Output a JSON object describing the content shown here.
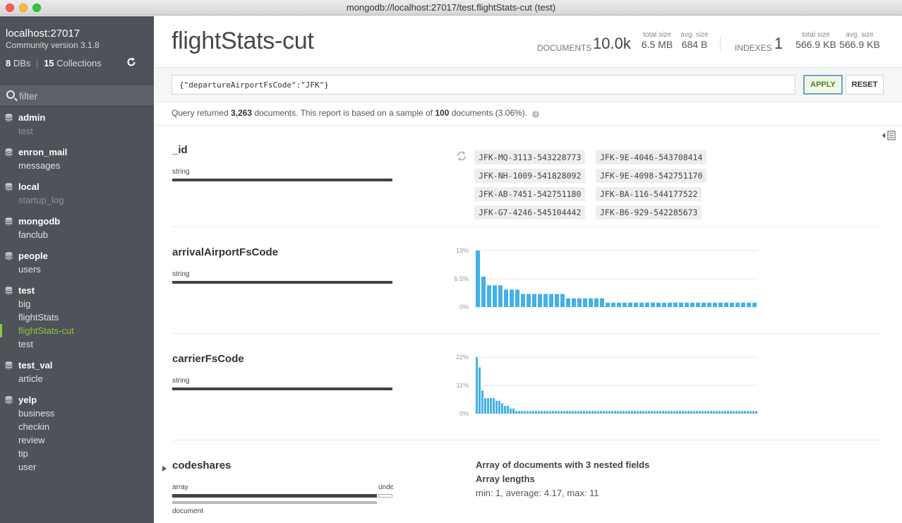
{
  "window": {
    "title": "mongodb://localhost:27017/test.flightStats-cut (test)"
  },
  "sidebar": {
    "host": "localhost:27017",
    "version": "Community version 3.1.8",
    "db_count": "8",
    "db_label": "DBs",
    "coll_count": "15",
    "coll_label": "Collections",
    "filter_placeholder": "filter",
    "databases": [
      {
        "name": "admin",
        "collections": [
          {
            "name": "test",
            "dim": true
          }
        ]
      },
      {
        "name": "enron_mail",
        "collections": [
          {
            "name": "messages"
          }
        ]
      },
      {
        "name": "local",
        "collections": [
          {
            "name": "startup_log",
            "dim": true
          }
        ]
      },
      {
        "name": "mongodb",
        "collections": [
          {
            "name": "fanclub"
          }
        ]
      },
      {
        "name": "people",
        "collections": [
          {
            "name": "users"
          }
        ]
      },
      {
        "name": "test",
        "collections": [
          {
            "name": "big"
          },
          {
            "name": "flightStats"
          },
          {
            "name": "flightStats-cut",
            "active": true
          },
          {
            "name": "test"
          }
        ]
      },
      {
        "name": "test_val",
        "collections": [
          {
            "name": "article"
          }
        ]
      },
      {
        "name": "yelp",
        "collections": [
          {
            "name": "business"
          },
          {
            "name": "checkin"
          },
          {
            "name": "review"
          },
          {
            "name": "tip"
          },
          {
            "name": "user"
          }
        ]
      }
    ]
  },
  "header": {
    "collection": "flightStats-cut",
    "documents_label": "DOCUMENTS",
    "documents_value": "10.0k",
    "doc_total_size_label": "total size",
    "doc_total_size": "6.5 MB",
    "doc_avg_size_label": "avg. size",
    "doc_avg_size": "684 B",
    "indexes_label": "INDEXES",
    "indexes_value": "1",
    "idx_total_size_label": "total size",
    "idx_total_size": "566.9 KB",
    "idx_avg_size_label": "avg. size",
    "idx_avg_size": "566.9 KB"
  },
  "query": {
    "value": "{\"departureAirportFsCode\":\"JFK\"}",
    "apply_label": "APPLY",
    "reset_label": "RESET"
  },
  "query_info": {
    "prefix": "Query returned",
    "returned": "3,263",
    "middle": "documents. This report is based on a sample of",
    "sample": "100",
    "suffix": "documents (3.06%)."
  },
  "fields": {
    "id": {
      "name": "_id",
      "type": "string"
    },
    "arrival": {
      "name": "arrivalAirportFsCode",
      "type": "string"
    },
    "carrier": {
      "name": "carrierFsCode",
      "type": "string"
    },
    "codeshares": {
      "name": "codeshares",
      "type_array": "array",
      "type_undef": "undefined",
      "type_document": "document",
      "array_share": 0.93,
      "info_line1": "Array of documents with 3 nested fields",
      "info_line2": "Array lengths",
      "info_line3": "min: 1,   average: 4.17,   max: 11"
    }
  },
  "id_samples": [
    "JFK-MQ-3113-543228773",
    "JFK-9E-4046-543708414",
    "JFK-NH-1009-541828092",
    "JFK-9E-4098-542751170",
    "JFK-AB-7451-542751180",
    "JFK-BA-116-544177522",
    "JFK-G7-4246-545104442",
    "JFK-B6-929-542285673"
  ],
  "colors": {
    "bar": "#43b1e5",
    "sidebar": "#4f5259",
    "active": "#8dc63f",
    "type_bar": "#444444"
  },
  "chart_data": [
    {
      "type": "bar",
      "field": "arrivalAirportFsCode",
      "tick_labels": [
        "13%",
        "6.5%",
        "0%"
      ],
      "ylim": [
        0,
        13
      ],
      "values": [
        13,
        7,
        5,
        5,
        5,
        4,
        4,
        4,
        3,
        3,
        3,
        3,
        3,
        3,
        3,
        3,
        2,
        2,
        2,
        2,
        2,
        2,
        2,
        1,
        1,
        1,
        1,
        1,
        1,
        1,
        1,
        1,
        1,
        1,
        1,
        1,
        1,
        1,
        1,
        1,
        1,
        1,
        1,
        1,
        1,
        1,
        1,
        1,
        1,
        1
      ]
    },
    {
      "type": "bar",
      "field": "carrierFsCode",
      "tick_labels": [
        "22%",
        "11%",
        "0%"
      ],
      "ylim": [
        0,
        22
      ],
      "values": [
        22,
        18,
        9,
        6,
        6,
        6,
        6,
        5,
        5,
        4,
        3,
        3,
        2,
        2,
        1,
        1,
        1,
        1,
        1,
        1,
        1,
        1,
        1,
        1,
        1,
        1,
        1,
        1,
        1,
        1,
        1,
        1,
        1,
        1,
        1,
        1,
        1,
        1,
        1,
        1,
        1,
        1,
        1,
        1,
        1,
        1,
        1,
        1,
        1,
        1,
        1,
        1,
        1,
        1,
        1,
        1,
        1,
        1,
        1,
        1,
        1,
        1,
        1,
        1,
        1,
        1,
        1,
        1,
        1,
        1,
        1,
        1,
        1,
        1,
        1,
        1,
        1,
        1,
        1,
        1,
        1,
        1,
        1,
        1,
        1,
        1,
        1,
        1,
        1,
        1,
        1,
        1,
        1,
        1,
        1,
        1,
        1,
        1,
        1,
        1
      ]
    }
  ]
}
